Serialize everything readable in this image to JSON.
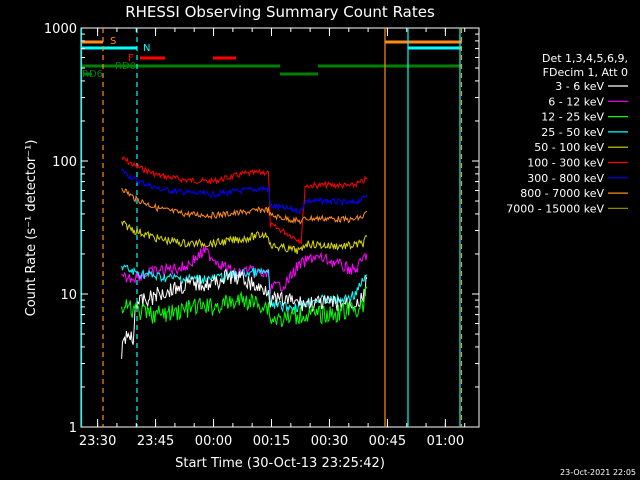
{
  "chart_data": {
    "type": "line",
    "title": "RHESSI Observing Summary Count Rates",
    "xlabel": "Start Time (30-Oct-13 23:25:42)",
    "ylabel": "Count Rate (s⁻¹ detector⁻¹)",
    "yscale": "log",
    "ylim": [
      1,
      1000
    ],
    "xlim_minutes": [
      0,
      103
    ],
    "x_ticks": [
      {
        "label": "23:30",
        "minute": 4.3
      },
      {
        "label": "23:45",
        "minute": 19.3
      },
      {
        "label": "00:00",
        "minute": 34.3
      },
      {
        "label": "00:15",
        "minute": 49.3
      },
      {
        "label": "00:30",
        "minute": 64.3
      },
      {
        "label": "00:45",
        "minute": 79.3
      },
      {
        "label": "01:00",
        "minute": 94.3
      }
    ],
    "y_ticks": [
      {
        "label": "1",
        "value": 1
      },
      {
        "label": "10",
        "value": 10
      },
      {
        "label": "100",
        "value": 100
      },
      {
        "label": "1000",
        "value": 1000
      }
    ],
    "legend": {
      "placement": "right",
      "header": [
        "Det 1,3,4,5,6,9,",
        "FDecim 1, Att 0"
      ],
      "entries": [
        {
          "label": "3 - 6 keV",
          "color": "#ffffff"
        },
        {
          "label": "6 - 12 keV",
          "color": "#ff00ff"
        },
        {
          "label": "12 - 25 keV",
          "color": "#00ff00"
        },
        {
          "label": "25 - 50 keV",
          "color": "#00ffff"
        },
        {
          "label": "50 - 100 keV",
          "color": "#d7d700"
        },
        {
          "label": "100 - 300 keV",
          "color": "#ff0000"
        },
        {
          "label": "300 - 800 keV",
          "color": "#0000ff"
        },
        {
          "label": "800 - 7000 keV",
          "color": "#ff8c1a"
        },
        {
          "label": "7000 - 15000 keV",
          "color": "#8b8b00"
        }
      ]
    },
    "series": [
      {
        "name": "100 - 300 keV",
        "color": "#ff0000",
        "x": [
          10.5,
          14,
          20,
          27,
          34,
          42,
          47,
          48.5,
          49,
          53,
          57,
          58,
          64,
          70,
          73,
          74
        ],
        "y": [
          105,
          92,
          78,
          72,
          70,
          80,
          82,
          82,
          33,
          29,
          25,
          65,
          66,
          65,
          70,
          75
        ]
      },
      {
        "name": "300 - 800 keV",
        "color": "#0000ff",
        "x": [
          10.5,
          14,
          20,
          27,
          34,
          42,
          47,
          48.5,
          49,
          53,
          57,
          58,
          64,
          70,
          73,
          74
        ],
        "y": [
          86,
          72,
          62,
          58,
          56,
          60,
          62,
          62,
          46,
          44,
          42,
          50,
          50,
          48,
          52,
          56
        ]
      },
      {
        "name": "800 - 7000 keV",
        "color": "#ff8c1a",
        "x": [
          10.5,
          14,
          20,
          27,
          34,
          42,
          47,
          48.5,
          49,
          53,
          57,
          58,
          64,
          70,
          73,
          74
        ],
        "y": [
          63,
          52,
          44,
          40,
          39,
          41,
          43,
          43,
          39,
          37,
          35,
          37,
          37,
          36,
          38,
          42
        ]
      },
      {
        "name": "50 - 100 keV",
        "color": "#d7d700",
        "x": [
          10.5,
          14,
          20,
          27,
          34,
          42,
          47,
          48.5,
          49,
          53,
          57,
          58,
          64,
          70,
          73,
          74
        ],
        "y": [
          34,
          30,
          26,
          24,
          24,
          26,
          28,
          28,
          23,
          22,
          21,
          24,
          23,
          23,
          24,
          27
        ]
      },
      {
        "name": "6 - 12 keV",
        "color": "#ff00ff",
        "x": [
          10.5,
          14,
          20,
          27,
          32,
          36,
          40,
          43,
          47,
          48.5,
          49,
          53,
          56,
          60,
          64,
          68,
          71,
          74
        ],
        "y": [
          13,
          13.5,
          15,
          16,
          21,
          17,
          14,
          15,
          14,
          14,
          11,
          12,
          16,
          19,
          18,
          16,
          15,
          20
        ]
      },
      {
        "name": "25 - 50 keV",
        "color": "#00ffff",
        "x": [
          10.5,
          14,
          20,
          27,
          34,
          40,
          44,
          48.5,
          49,
          53,
          56,
          60,
          64,
          68,
          71,
          74
        ],
        "y": [
          16,
          14.5,
          13.5,
          13,
          13,
          14,
          14.5,
          14.5,
          8.5,
          8,
          8,
          9,
          9,
          9,
          10,
          14
        ]
      },
      {
        "name": "3 - 6 keV",
        "color": "#ffffff",
        "x": [
          10.5,
          11,
          12,
          13,
          13.5,
          14,
          17,
          20,
          24,
          29,
          34,
          38,
          42,
          46,
          48.5,
          49,
          53,
          57,
          62,
          66,
          70,
          73,
          74
        ],
        "y": [
          3,
          5,
          4.5,
          5,
          4,
          8.5,
          9,
          10,
          11,
          12,
          12,
          13.5,
          13,
          11,
          11,
          9,
          9,
          8.5,
          8.5,
          8.5,
          8.5,
          9,
          13
        ]
      },
      {
        "name": "12 - 25 keV",
        "color": "#00ff00",
        "x": [
          10.5,
          14,
          18,
          22,
          26,
          30,
          34,
          38,
          42,
          46,
          48.5,
          49,
          53,
          57,
          61,
          65,
          69,
          73,
          74
        ],
        "y": [
          8,
          7.5,
          7,
          7,
          7.5,
          8,
          8,
          8.5,
          9,
          8.5,
          8,
          6.5,
          6.5,
          7,
          7,
          7,
          7.5,
          8,
          11
        ]
      }
    ],
    "flags": [
      {
        "label": "S",
        "color": "#ff8c1a"
      },
      {
        "label": "N",
        "color": "#00ffff"
      },
      {
        "label": "F",
        "color": "#ff0000"
      },
      {
        "label": "RD0",
        "color": "#008000"
      },
      {
        "label": "RD6",
        "color": "#008000"
      }
    ]
  },
  "footer_timestamp": "23-Oct-2021 22:05"
}
